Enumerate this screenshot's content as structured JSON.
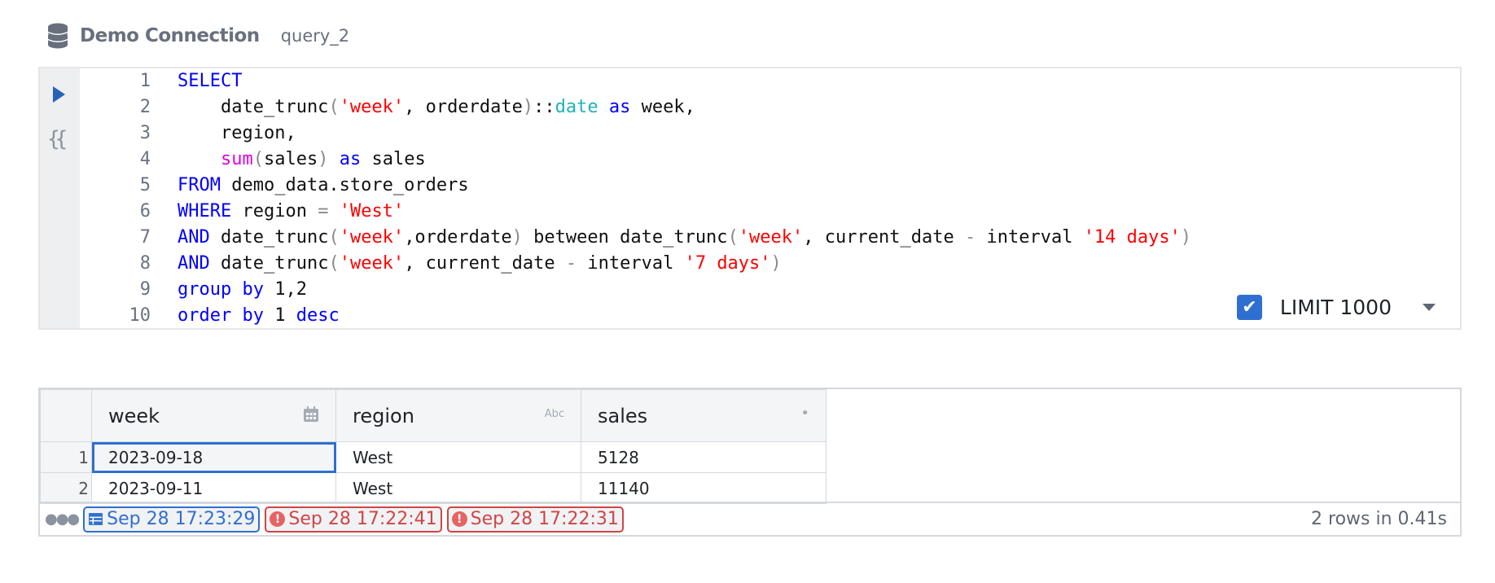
{
  "header": {
    "connection": "Demo Connection",
    "query_name": "query_2",
    "icon": "database-icon"
  },
  "editor": {
    "run_icon": "play-icon",
    "template_icon": "{{",
    "lines": [
      {
        "n": "1",
        "tokens": [
          [
            "kw",
            "SELECT"
          ]
        ]
      },
      {
        "n": "2",
        "tokens": [
          [
            "id",
            "    date_trunc"
          ],
          [
            "pu",
            "("
          ],
          [
            "str",
            "'week'"
          ],
          [
            "id",
            ", orderdate"
          ],
          [
            "pu",
            ")"
          ],
          [
            "id",
            "::"
          ],
          [
            "ty",
            "date"
          ],
          [
            "id",
            " "
          ],
          [
            "kw",
            "as"
          ],
          [
            "id",
            " week,"
          ]
        ]
      },
      {
        "n": "3",
        "tokens": [
          [
            "id",
            "    region,"
          ]
        ]
      },
      {
        "n": "4",
        "tokens": [
          [
            "id",
            "    "
          ],
          [
            "fn",
            "sum"
          ],
          [
            "pu",
            "("
          ],
          [
            "id",
            "sales"
          ],
          [
            "pu",
            ")"
          ],
          [
            "id",
            " "
          ],
          [
            "kw",
            "as"
          ],
          [
            "id",
            " sales"
          ]
        ]
      },
      {
        "n": "5",
        "tokens": [
          [
            "kw",
            "FROM"
          ],
          [
            "id",
            " demo_data.store_orders"
          ]
        ]
      },
      {
        "n": "6",
        "tokens": [
          [
            "kw",
            "WHERE"
          ],
          [
            "id",
            " region "
          ],
          [
            "op",
            "="
          ],
          [
            "id",
            " "
          ],
          [
            "str",
            "'West'"
          ]
        ]
      },
      {
        "n": "7",
        "tokens": [
          [
            "kw",
            "AND"
          ],
          [
            "id",
            " date_trunc"
          ],
          [
            "pu",
            "("
          ],
          [
            "str",
            "'week'"
          ],
          [
            "id",
            ",orderdate"
          ],
          [
            "pu",
            ")"
          ],
          [
            "id",
            " between date_trunc"
          ],
          [
            "pu",
            "("
          ],
          [
            "str",
            "'week'"
          ],
          [
            "id",
            ", current_date "
          ],
          [
            "op",
            "-"
          ],
          [
            "id",
            " interval "
          ],
          [
            "str",
            "'14 days'"
          ],
          [
            "pu",
            ")"
          ]
        ]
      },
      {
        "n": "8",
        "tokens": [
          [
            "kw",
            "AND"
          ],
          [
            "id",
            " date_trunc"
          ],
          [
            "pu",
            "("
          ],
          [
            "str",
            "'week'"
          ],
          [
            "id",
            ", current_date "
          ],
          [
            "op",
            "-"
          ],
          [
            "id",
            " interval "
          ],
          [
            "str",
            "'7 days'"
          ],
          [
            "pu",
            ")"
          ]
        ]
      },
      {
        "n": "9",
        "tokens": [
          [
            "kw",
            "group"
          ],
          [
            "id",
            " "
          ],
          [
            "kw",
            "by"
          ],
          [
            "id",
            " 1,2"
          ]
        ]
      },
      {
        "n": "10",
        "tokens": [
          [
            "kw",
            "order"
          ],
          [
            "id",
            " "
          ],
          [
            "kw",
            "by"
          ],
          [
            "id",
            " 1 "
          ],
          [
            "kw",
            "desc"
          ]
        ]
      }
    ],
    "limit": {
      "checked": true,
      "label": "LIMIT 1000"
    }
  },
  "results": {
    "columns": [
      {
        "name": "week",
        "type_icon": "calendar-icon"
      },
      {
        "name": "region",
        "type_icon": "Abc"
      },
      {
        "name": "sales",
        "type_icon": "•"
      }
    ],
    "rows": [
      {
        "n": "1",
        "cells": [
          "2023-09-18",
          "West",
          "5128"
        ]
      },
      {
        "n": "2",
        "cells": [
          "2023-09-11",
          "West",
          "11140"
        ]
      }
    ],
    "history": [
      {
        "status": "success",
        "label": "Sep 28 17:23:29"
      },
      {
        "status": "error",
        "label": "Sep 28 17:22:41"
      },
      {
        "status": "error",
        "label": "Sep 28 17:22:31"
      }
    ],
    "row_info": "2 rows in 0.41s"
  },
  "colors": {
    "accent": "#2f6fd1",
    "error": "#d04545",
    "keyword": "#0000ff",
    "string": "#ff0000",
    "function": "#e000e0",
    "type": "#21b2b8"
  }
}
